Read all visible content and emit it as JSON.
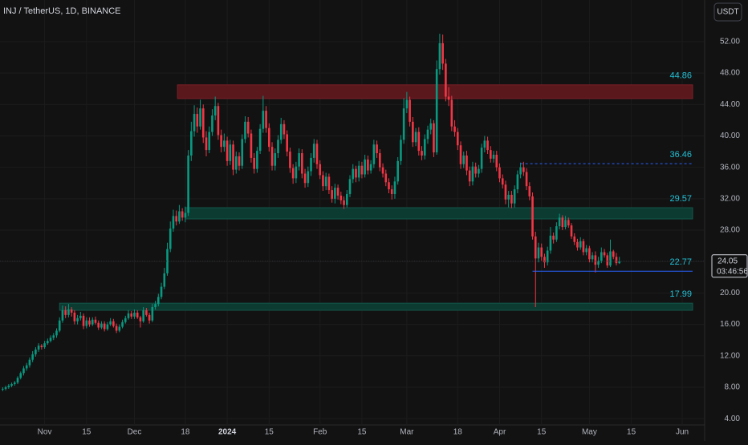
{
  "chart_data": {
    "type": "candlestick",
    "title": "INJ / TetherUS, 1D, BINANCE",
    "currency": "USDT",
    "countdown": "03:46:56",
    "up_color": "#089981",
    "down_color": "#f23645",
    "xlim": [
      -75.9,
      159.5
    ],
    "ylim": [
      3.2,
      57.3
    ],
    "xticks": [
      {
        "value": -61,
        "label": "Nov"
      },
      {
        "value": -47,
        "label": "15"
      },
      {
        "value": -31,
        "label": "Dec"
      },
      {
        "value": -14,
        "label": "18"
      },
      {
        "value": 0,
        "label": "2024"
      },
      {
        "value": 14,
        "label": "15"
      },
      {
        "value": 31,
        "label": "Feb"
      },
      {
        "value": 45,
        "label": "15"
      },
      {
        "value": 60,
        "label": "Mar"
      },
      {
        "value": 77,
        "label": "18"
      },
      {
        "value": 91,
        "label": "Apr"
      },
      {
        "value": 105,
        "label": "15"
      },
      {
        "value": 121,
        "label": "May"
      },
      {
        "value": 135,
        "label": "15"
      },
      {
        "value": 152,
        "label": "Jun"
      }
    ],
    "yticks": [
      {
        "value": 52,
        "label": "52.00"
      },
      {
        "value": 48,
        "label": "48.00"
      },
      {
        "value": 44,
        "label": "44.00"
      },
      {
        "value": 40,
        "label": "40.00"
      },
      {
        "value": 36,
        "label": "36.00"
      },
      {
        "value": 32,
        "label": "32.00"
      },
      {
        "value": 28,
        "label": "28.00"
      },
      {
        "value": 24,
        "label": "24.00"
      },
      {
        "value": 20,
        "label": "20.00"
      },
      {
        "value": 16,
        "label": "16.00"
      },
      {
        "value": 12,
        "label": "12.00"
      },
      {
        "value": 8,
        "label": "8.00"
      },
      {
        "value": 4,
        "label": "4.00"
      }
    ],
    "zones": [
      {
        "value": 44.86,
        "top": 46.5,
        "bottom": 44.75,
        "start": -16.6,
        "color": "#5a171c"
      },
      {
        "value": 29.57,
        "top": 30.86,
        "bottom": 29.43,
        "start": -14,
        "color": "#0c3b32"
      },
      {
        "value": 17.99,
        "top": 18.7,
        "bottom": 17.8,
        "start": -56,
        "color": "#0c3b32"
      }
    ],
    "levels": [
      {
        "value": 36.46,
        "start": 98,
        "style": "dashed",
        "color": "#2962ff"
      },
      {
        "value": 22.77,
        "start": 102,
        "style": "solid",
        "color": "#2962ff"
      }
    ],
    "x": [
      -75,
      -74,
      -73,
      -72,
      -71,
      -70,
      -69,
      -68,
      -67,
      -66,
      -65,
      -64,
      -63,
      -62,
      -61,
      -60,
      -59,
      -58,
      -57,
      -56,
      -55,
      -54,
      -53,
      -52,
      -51,
      -50,
      -49,
      -48,
      -47,
      -46,
      -45,
      -44,
      -43,
      -42,
      -41,
      -40,
      -39,
      -38,
      -37,
      -36,
      -35,
      -34,
      -33,
      -32,
      -31,
      -30,
      -29,
      -28,
      -27,
      -26,
      -25,
      -24,
      -23,
      -22,
      -21,
      -20,
      -19,
      -18,
      -17,
      -16,
      -15,
      -14,
      -13,
      -12,
      -11,
      -10,
      -9,
      -8,
      -7,
      -6,
      -5,
      -4,
      -3,
      -2,
      -1,
      0,
      1,
      2,
      3,
      4,
      5,
      6,
      7,
      8,
      9,
      10,
      11,
      12,
      13,
      14,
      15,
      16,
      17,
      18,
      19,
      20,
      21,
      22,
      23,
      24,
      25,
      26,
      27,
      28,
      29,
      30,
      31,
      32,
      33,
      34,
      35,
      36,
      37,
      38,
      39,
      40,
      41,
      42,
      43,
      44,
      45,
      46,
      47,
      48,
      49,
      50,
      51,
      52,
      53,
      54,
      55,
      56,
      57,
      58,
      59,
      60,
      61,
      62,
      63,
      64,
      65,
      66,
      67,
      68,
      69,
      70,
      71,
      72,
      73,
      74,
      75,
      76,
      77,
      78,
      79,
      80,
      81,
      82,
      83,
      84,
      85,
      86,
      87,
      88,
      89,
      90,
      91,
      92,
      93,
      94,
      95,
      96,
      97,
      98,
      99,
      100,
      101,
      102,
      103,
      104,
      105,
      106,
      107,
      108,
      109,
      110,
      111,
      112,
      113,
      114,
      115,
      116,
      117,
      118,
      119,
      120,
      121,
      122,
      123,
      124,
      125,
      126,
      127,
      128,
      129,
      130,
      131
    ],
    "open": [
      7.7,
      7.8,
      8.0,
      8.2,
      8.4,
      8.6,
      9.2,
      9.8,
      10.4,
      10.8,
      11.5,
      12.2,
      12.8,
      13.3,
      13.1,
      13.6,
      13.9,
      14.3,
      14.6,
      15.2,
      16.5,
      17.8,
      17.2,
      17.9,
      17.5,
      16.4,
      16.8,
      17.1,
      15.8,
      16.5,
      16.0,
      16.6,
      16.2,
      15.6,
      16.1,
      15.4,
      16.0,
      16.4,
      15.8,
      15.2,
      15.7,
      16.3,
      16.8,
      17.4,
      17.0,
      17.5,
      16.9,
      16.4,
      17.8,
      17.2,
      16.5,
      18.2,
      18.6,
      19.5,
      20.8,
      22.5,
      25.6,
      28.2,
      29.8,
      29.1,
      30.4,
      29.6,
      30.2,
      37.5,
      40.6,
      42.8,
      41.2,
      43.5,
      39.8,
      38.2,
      40.5,
      42.6,
      43.8,
      40.1,
      38.6,
      39.4,
      36.8,
      38.9,
      35.7,
      37.4,
      36.2,
      39.6,
      41.8,
      40.3,
      37.2,
      35.8,
      38.1,
      40.9,
      43.2,
      41.0,
      38.6,
      36.2,
      37.8,
      39.5,
      41.5,
      40.2,
      38.0,
      35.9,
      34.6,
      36.1,
      37.8,
      35.2,
      34.0,
      35.5,
      37.2,
      39.0,
      36.4,
      35.0,
      33.6,
      34.8,
      33.1,
      32.0,
      33.4,
      32.4,
      31.8,
      31.2,
      32.6,
      34.5,
      35.8,
      34.7,
      36.2,
      35.1,
      37.0,
      35.6,
      36.4,
      38.9,
      37.8,
      36.0,
      35.2,
      34.1,
      33.2,
      32.6,
      34.2,
      36.8,
      39.5,
      43.5,
      44.6,
      41.8,
      39.2,
      40.5,
      38.1,
      37.5,
      39.6,
      40.8,
      41.6,
      37.9,
      48.5,
      51.8,
      49.2,
      45.0,
      44.6,
      41.2,
      40.5,
      38.8,
      36.4,
      37.5,
      35.6,
      34.2,
      36.1,
      35.2,
      35.8,
      38.5,
      39.4,
      38.2,
      37.1,
      37.6,
      36.0,
      34.6,
      33.8,
      31.9,
      32.5,
      31.4,
      33.2,
      35.1,
      36.0,
      35.4,
      33.6,
      32.3,
      27.2,
      24.4,
      25.8,
      24.6,
      23.9,
      25.4,
      27.3,
      26.8,
      28.5,
      29.6,
      28.4,
      29.3,
      28.6,
      27.2,
      26.5,
      25.8,
      26.6,
      25.2,
      25.7,
      24.3,
      24.8,
      23.6,
      24.1,
      25.2,
      24.8,
      23.5,
      25.3,
      24.6,
      23.8
    ],
    "high": [
      8.0,
      8.2,
      8.4,
      8.6,
      8.8,
      9.4,
      10.0,
      10.7,
      11.1,
      11.8,
      12.6,
      13.1,
      13.6,
      13.5,
      13.9,
      14.2,
      14.6,
      14.9,
      15.5,
      16.9,
      18.4,
      18.3,
      18.6,
      18.2,
      17.8,
      17.2,
      17.6,
      17.4,
      16.9,
      16.9,
      16.9,
      17.0,
      16.5,
      16.4,
      16.4,
      16.3,
      16.8,
      16.7,
      16.1,
      16.0,
      16.6,
      17.1,
      17.8,
      17.7,
      17.9,
      17.8,
      17.1,
      18.2,
      18.1,
      17.5,
      18.6,
      19.0,
      19.9,
      21.3,
      23.2,
      26.4,
      29.1,
      30.6,
      30.5,
      31.2,
      30.8,
      31.0,
      38.2,
      41.8,
      43.9,
      43.6,
      44.6,
      44.0,
      40.6,
      41.2,
      43.4,
      45.0,
      44.2,
      40.8,
      40.3,
      39.9,
      39.5,
      39.4,
      38.0,
      37.9,
      40.2,
      42.5,
      42.4,
      40.8,
      37.8,
      38.6,
      41.5,
      45.1,
      43.8,
      41.6,
      39.2,
      38.4,
      40.1,
      42.3,
      42.0,
      40.7,
      38.5,
      36.4,
      36.7,
      38.4,
      38.3,
      35.8,
      36.1,
      37.8,
      39.6,
      39.5,
      36.9,
      35.5,
      35.3,
      35.2,
      33.6,
      33.9,
      33.8,
      32.9,
      32.3,
      33.1,
      35.0,
      36.4,
      36.2,
      36.8,
      36.7,
      37.6,
      37.5,
      36.9,
      39.5,
      39.4,
      38.3,
      36.5,
      35.7,
      34.6,
      33.7,
      34.8,
      37.3,
      40.1,
      44.8,
      45.6,
      45.0,
      42.4,
      41.0,
      41.1,
      38.7,
      40.2,
      41.3,
      42.2,
      42.0,
      49.6,
      53.0,
      52.9,
      49.8,
      46.2,
      45.1,
      42.0,
      41.0,
      39.3,
      38.0,
      38.1,
      36.1,
      36.7,
      36.6,
      36.3,
      39.0,
      40.0,
      39.9,
      38.7,
      38.1,
      38.1,
      36.5,
      35.1,
      34.3,
      33.0,
      33.0,
      33.7,
      35.6,
      36.6,
      36.7,
      35.9,
      34.1,
      32.8,
      27.8,
      26.4,
      26.3,
      25.0,
      25.9,
      28.4,
      27.7,
      29.0,
      30.1,
      29.9,
      29.8,
      29.6,
      28.9,
      27.6,
      26.9,
      27.1,
      26.9,
      26.1,
      26.0,
      25.2,
      25.3,
      24.6,
      25.8,
      25.6,
      25.1,
      26.8,
      25.5,
      25.1,
      24.6
    ],
    "low": [
      7.5,
      7.6,
      7.8,
      8.0,
      8.2,
      8.4,
      9.0,
      9.5,
      10.1,
      10.5,
      11.2,
      11.9,
      12.5,
      12.8,
      12.9,
      13.4,
      13.7,
      14.0,
      14.3,
      15.0,
      16.2,
      16.8,
      16.9,
      17.0,
      16.0,
      16.0,
      16.5,
      15.4,
      15.5,
      15.7,
      15.8,
      16.0,
      15.3,
      15.4,
      15.1,
      15.2,
      15.8,
      15.6,
      14.9,
      15.0,
      15.5,
      16.1,
      16.6,
      16.7,
      16.7,
      16.7,
      15.6,
      16.2,
      17.0,
      16.1,
      16.3,
      17.9,
      18.3,
      19.2,
      20.5,
      22.2,
      25.2,
      27.8,
      28.6,
      28.8,
      29.2,
      29.0,
      29.8,
      36.8,
      39.9,
      40.4,
      40.8,
      39.1,
      37.4,
      37.8,
      40.0,
      42.0,
      39.5,
      37.9,
      38.0,
      36.2,
      36.3,
      35.0,
      35.2,
      35.6,
      35.8,
      39.1,
      39.8,
      36.6,
      35.2,
      35.3,
      37.7,
      40.4,
      40.4,
      38.0,
      35.6,
      35.6,
      37.2,
      39.0,
      39.6,
      37.4,
      35.3,
      33.9,
      34.0,
      35.6,
      34.6,
      33.4,
      33.5,
      34.9,
      36.6,
      35.8,
      34.5,
      33.0,
      33.1,
      32.6,
      31.5,
      31.4,
      31.9,
      31.3,
      30.7,
      30.9,
      32.2,
      34.0,
      34.1,
      34.2,
      34.6,
      34.7,
      35.1,
      35.2,
      35.9,
      37.2,
      35.5,
      34.7,
      33.6,
      32.7,
      31.9,
      32.0,
      33.8,
      36.3,
      39.0,
      42.9,
      41.2,
      38.6,
      38.7,
      37.5,
      36.9,
      37.0,
      39.0,
      40.2,
      37.3,
      37.6,
      47.8,
      48.4,
      44.4,
      43.8,
      40.6,
      39.9,
      38.2,
      35.8,
      35.9,
      35.0,
      33.6,
      33.7,
      34.7,
      34.7,
      35.3,
      37.9,
      37.7,
      36.6,
      36.6,
      35.5,
      34.1,
      33.3,
      31.3,
      30.9,
      30.8,
      30.9,
      32.7,
      34.6,
      34.9,
      33.1,
      31.8,
      26.8,
      18.2,
      23.9,
      24.1,
      23.2,
      23.5,
      25.0,
      26.3,
      26.5,
      28.1,
      28.0,
      28.1,
      28.3,
      26.9,
      26.1,
      25.4,
      25.5,
      24.8,
      24.8,
      23.9,
      23.9,
      22.6,
      23.2,
      23.8,
      24.5,
      23.2,
      23.3,
      24.3,
      23.5,
      23.7
    ],
    "close": [
      7.8,
      8.0,
      8.2,
      8.4,
      8.6,
      9.2,
      9.8,
      10.4,
      10.8,
      11.5,
      12.2,
      12.8,
      13.3,
      13.1,
      13.6,
      13.9,
      14.3,
      14.6,
      15.2,
      16.5,
      17.8,
      17.2,
      17.9,
      17.5,
      16.4,
      16.8,
      17.1,
      15.8,
      16.5,
      16.0,
      16.6,
      16.2,
      15.6,
      16.1,
      15.4,
      16.0,
      16.4,
      15.8,
      15.2,
      15.7,
      16.3,
      16.8,
      17.4,
      17.0,
      17.5,
      16.9,
      16.4,
      17.8,
      17.2,
      16.5,
      18.2,
      18.6,
      19.5,
      20.8,
      22.5,
      25.6,
      28.2,
      29.8,
      29.1,
      30.4,
      29.6,
      30.2,
      37.5,
      40.6,
      42.8,
      41.2,
      43.5,
      39.8,
      38.2,
      40.5,
      42.6,
      43.8,
      40.1,
      38.6,
      39.4,
      36.8,
      38.9,
      35.7,
      37.4,
      36.2,
      39.6,
      41.8,
      40.3,
      37.2,
      35.8,
      38.1,
      40.9,
      43.2,
      41.0,
      38.6,
      36.2,
      37.8,
      39.5,
      41.5,
      40.2,
      38.0,
      35.9,
      34.6,
      36.1,
      37.8,
      35.2,
      34.0,
      35.5,
      37.2,
      39.0,
      36.4,
      35.0,
      33.6,
      34.8,
      33.1,
      32.0,
      33.4,
      32.4,
      31.8,
      31.2,
      32.6,
      34.5,
      35.8,
      34.7,
      36.2,
      35.1,
      37.0,
      35.6,
      36.4,
      38.9,
      37.8,
      36.0,
      35.2,
      34.1,
      33.2,
      32.6,
      34.2,
      36.8,
      39.5,
      43.5,
      44.6,
      41.8,
      39.2,
      40.5,
      38.1,
      37.5,
      39.6,
      40.8,
      41.6,
      37.9,
      48.5,
      51.8,
      49.2,
      45.0,
      44.6,
      41.2,
      40.5,
      38.8,
      36.4,
      37.5,
      35.6,
      34.2,
      36.1,
      35.2,
      35.8,
      38.5,
      39.4,
      38.2,
      37.1,
      37.6,
      36.0,
      34.6,
      33.8,
      31.9,
      32.5,
      31.4,
      33.2,
      35.1,
      36.0,
      35.4,
      33.6,
      32.3,
      27.2,
      24.4,
      25.8,
      24.6,
      23.9,
      25.4,
      27.3,
      26.8,
      28.5,
      29.6,
      28.4,
      29.3,
      28.6,
      27.2,
      26.5,
      25.8,
      26.6,
      25.2,
      25.7,
      24.3,
      24.8,
      23.6,
      24.1,
      25.2,
      24.8,
      23.5,
      25.3,
      24.6,
      23.8,
      24.05
    ]
  }
}
